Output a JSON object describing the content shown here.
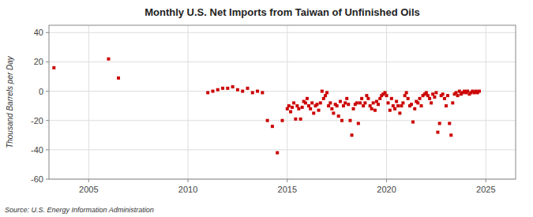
{
  "chart_data": {
    "type": "scatter",
    "title": "Monthly U.S. Net Imports from Taiwan of Unfinished Oils",
    "ylabel": "Thousand Barrels per Day",
    "annotations": [
      "Source: U.S. Energy Information Administration"
    ],
    "color": "#cc0000",
    "marker": "square",
    "grid": true,
    "xlim": [
      2003.0,
      2026.5
    ],
    "ylim": [
      -60,
      45
    ],
    "xticks": [
      2005,
      2010,
      2015,
      2020,
      2025
    ],
    "yticks": [
      -60,
      -40,
      -20,
      0,
      20,
      40
    ],
    "x": [
      2003.25,
      2006.0,
      2006.5,
      2011.0,
      2011.25,
      2011.5,
      2011.75,
      2012.0,
      2012.25,
      2012.5,
      2012.75,
      2013.0,
      2013.25,
      2013.5,
      2013.75,
      2014.0,
      2014.25,
      2014.5,
      2014.75,
      2015.0,
      2015.08,
      2015.17,
      2015.25,
      2015.33,
      2015.42,
      2015.5,
      2015.58,
      2015.67,
      2015.75,
      2015.83,
      2015.92,
      2016.0,
      2016.08,
      2016.17,
      2016.25,
      2016.33,
      2016.42,
      2016.5,
      2016.58,
      2016.67,
      2016.75,
      2016.83,
      2016.92,
      2017.0,
      2017.08,
      2017.17,
      2017.25,
      2017.33,
      2017.42,
      2017.5,
      2017.58,
      2017.67,
      2017.75,
      2017.83,
      2017.92,
      2018.0,
      2018.08,
      2018.17,
      2018.25,
      2018.33,
      2018.42,
      2018.5,
      2018.58,
      2018.67,
      2018.75,
      2018.83,
      2018.92,
      2019.0,
      2019.08,
      2019.17,
      2019.25,
      2019.33,
      2019.42,
      2019.5,
      2019.58,
      2019.67,
      2019.75,
      2019.83,
      2019.92,
      2020.0,
      2020.08,
      2020.17,
      2020.25,
      2020.33,
      2020.42,
      2020.5,
      2020.58,
      2020.67,
      2020.75,
      2020.83,
      2020.92,
      2021.0,
      2021.08,
      2021.17,
      2021.25,
      2021.33,
      2021.42,
      2021.5,
      2021.58,
      2021.67,
      2021.75,
      2021.83,
      2021.92,
      2022.0,
      2022.08,
      2022.17,
      2022.25,
      2022.33,
      2022.42,
      2022.5,
      2022.58,
      2022.67,
      2022.75,
      2022.83,
      2022.92,
      2023.0,
      2023.08,
      2023.17,
      2023.25,
      2023.33,
      2023.42,
      2023.5,
      2023.58,
      2023.67,
      2023.75,
      2023.83,
      2023.92,
      2024.0,
      2024.08,
      2024.17,
      2024.25,
      2024.33,
      2024.42,
      2024.5,
      2024.58,
      2024.67
    ],
    "values": [
      16,
      22,
      9,
      -1,
      0,
      1,
      2,
      2,
      3,
      1,
      0,
      2,
      -1,
      0,
      -1,
      -20,
      -24,
      -42,
      -20,
      -12,
      -10,
      -14,
      -11,
      -8,
      -19,
      -10,
      -12,
      -19,
      -11,
      -7,
      -8,
      -5,
      -10,
      -12,
      -8,
      -15,
      -10,
      -9,
      -13,
      -8,
      0,
      -5,
      -3,
      -1,
      -10,
      -8,
      -12,
      -15,
      -9,
      -10,
      -17,
      -7,
      -20,
      -10,
      -8,
      -5,
      -9,
      -20,
      -30,
      -12,
      -9,
      -8,
      -22,
      -8,
      -5,
      -10,
      -8,
      -3,
      -5,
      -10,
      -12,
      -8,
      -13,
      -7,
      -9,
      -5,
      -3,
      -2,
      -1,
      -3,
      -8,
      -13,
      -5,
      -10,
      -12,
      -7,
      -10,
      -15,
      -10,
      -8,
      -3,
      -1,
      -5,
      -10,
      -9,
      -21,
      -12,
      -7,
      -8,
      -5,
      -10,
      -3,
      -2,
      -1,
      -3,
      -5,
      -8,
      -2,
      -4,
      -1,
      -28,
      -22,
      -3,
      -2,
      -5,
      -10,
      -3,
      -22,
      -30,
      -8,
      -2,
      -1,
      -3,
      0,
      -2,
      -1,
      0,
      -1,
      0,
      -2,
      -1,
      0,
      -1,
      0,
      -1,
      0
    ]
  }
}
